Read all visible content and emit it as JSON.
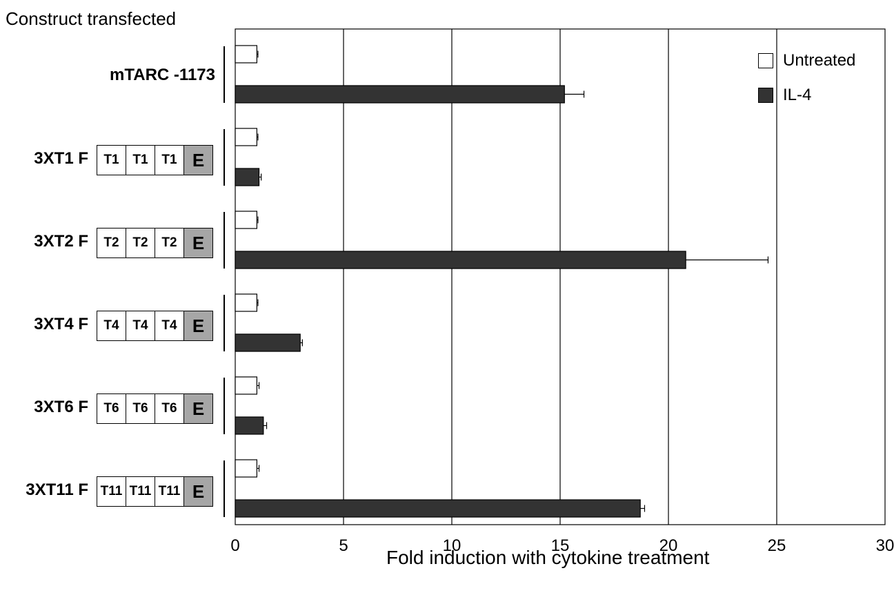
{
  "figure": {
    "header": "Construct transfected"
  },
  "chart_data": {
    "type": "bar",
    "orientation": "horizontal",
    "xlabel": "Fold induction with cytokine treatment",
    "xlim": [
      0,
      30
    ],
    "xticks": [
      0,
      5,
      10,
      15,
      20,
      25,
      30
    ],
    "grid": "vertical lines at x ticks",
    "legend_position": "top-right",
    "categories": [
      "mTARC -1173",
      "3XT1 F",
      "3XT2 F",
      "3XT4 F",
      "3XT6 F",
      "3XT11 F"
    ],
    "series": [
      {
        "name": "Untreated",
        "color": "#ffffff",
        "values": [
          1.0,
          1.0,
          1.0,
          1.0,
          1.0,
          1.0
        ],
        "errors": [
          0.05,
          0.05,
          0.05,
          0.05,
          0.1,
          0.1
        ]
      },
      {
        "name": "IL-4",
        "color": "#333333",
        "values": [
          15.2,
          1.1,
          20.8,
          3.0,
          1.3,
          18.7
        ],
        "errors": [
          0.9,
          0.1,
          3.8,
          0.1,
          0.15,
          0.2
        ]
      }
    ],
    "constructs": [
      {
        "label": "mTARC -1173",
        "elements": []
      },
      {
        "label": "3XT1 F",
        "elements": [
          "T1",
          "T1",
          "T1",
          "E"
        ]
      },
      {
        "label": "3XT2 F",
        "elements": [
          "T2",
          "T2",
          "T2",
          "E"
        ]
      },
      {
        "label": "3XT4 F",
        "elements": [
          "T4",
          "T4",
          "T4",
          "E"
        ]
      },
      {
        "label": "3XT6 F",
        "elements": [
          "T6",
          "T6",
          "T6",
          "E"
        ]
      },
      {
        "label": "3XT11 F",
        "elements": [
          "T11",
          "T11",
          "T11",
          "E"
        ]
      }
    ]
  }
}
